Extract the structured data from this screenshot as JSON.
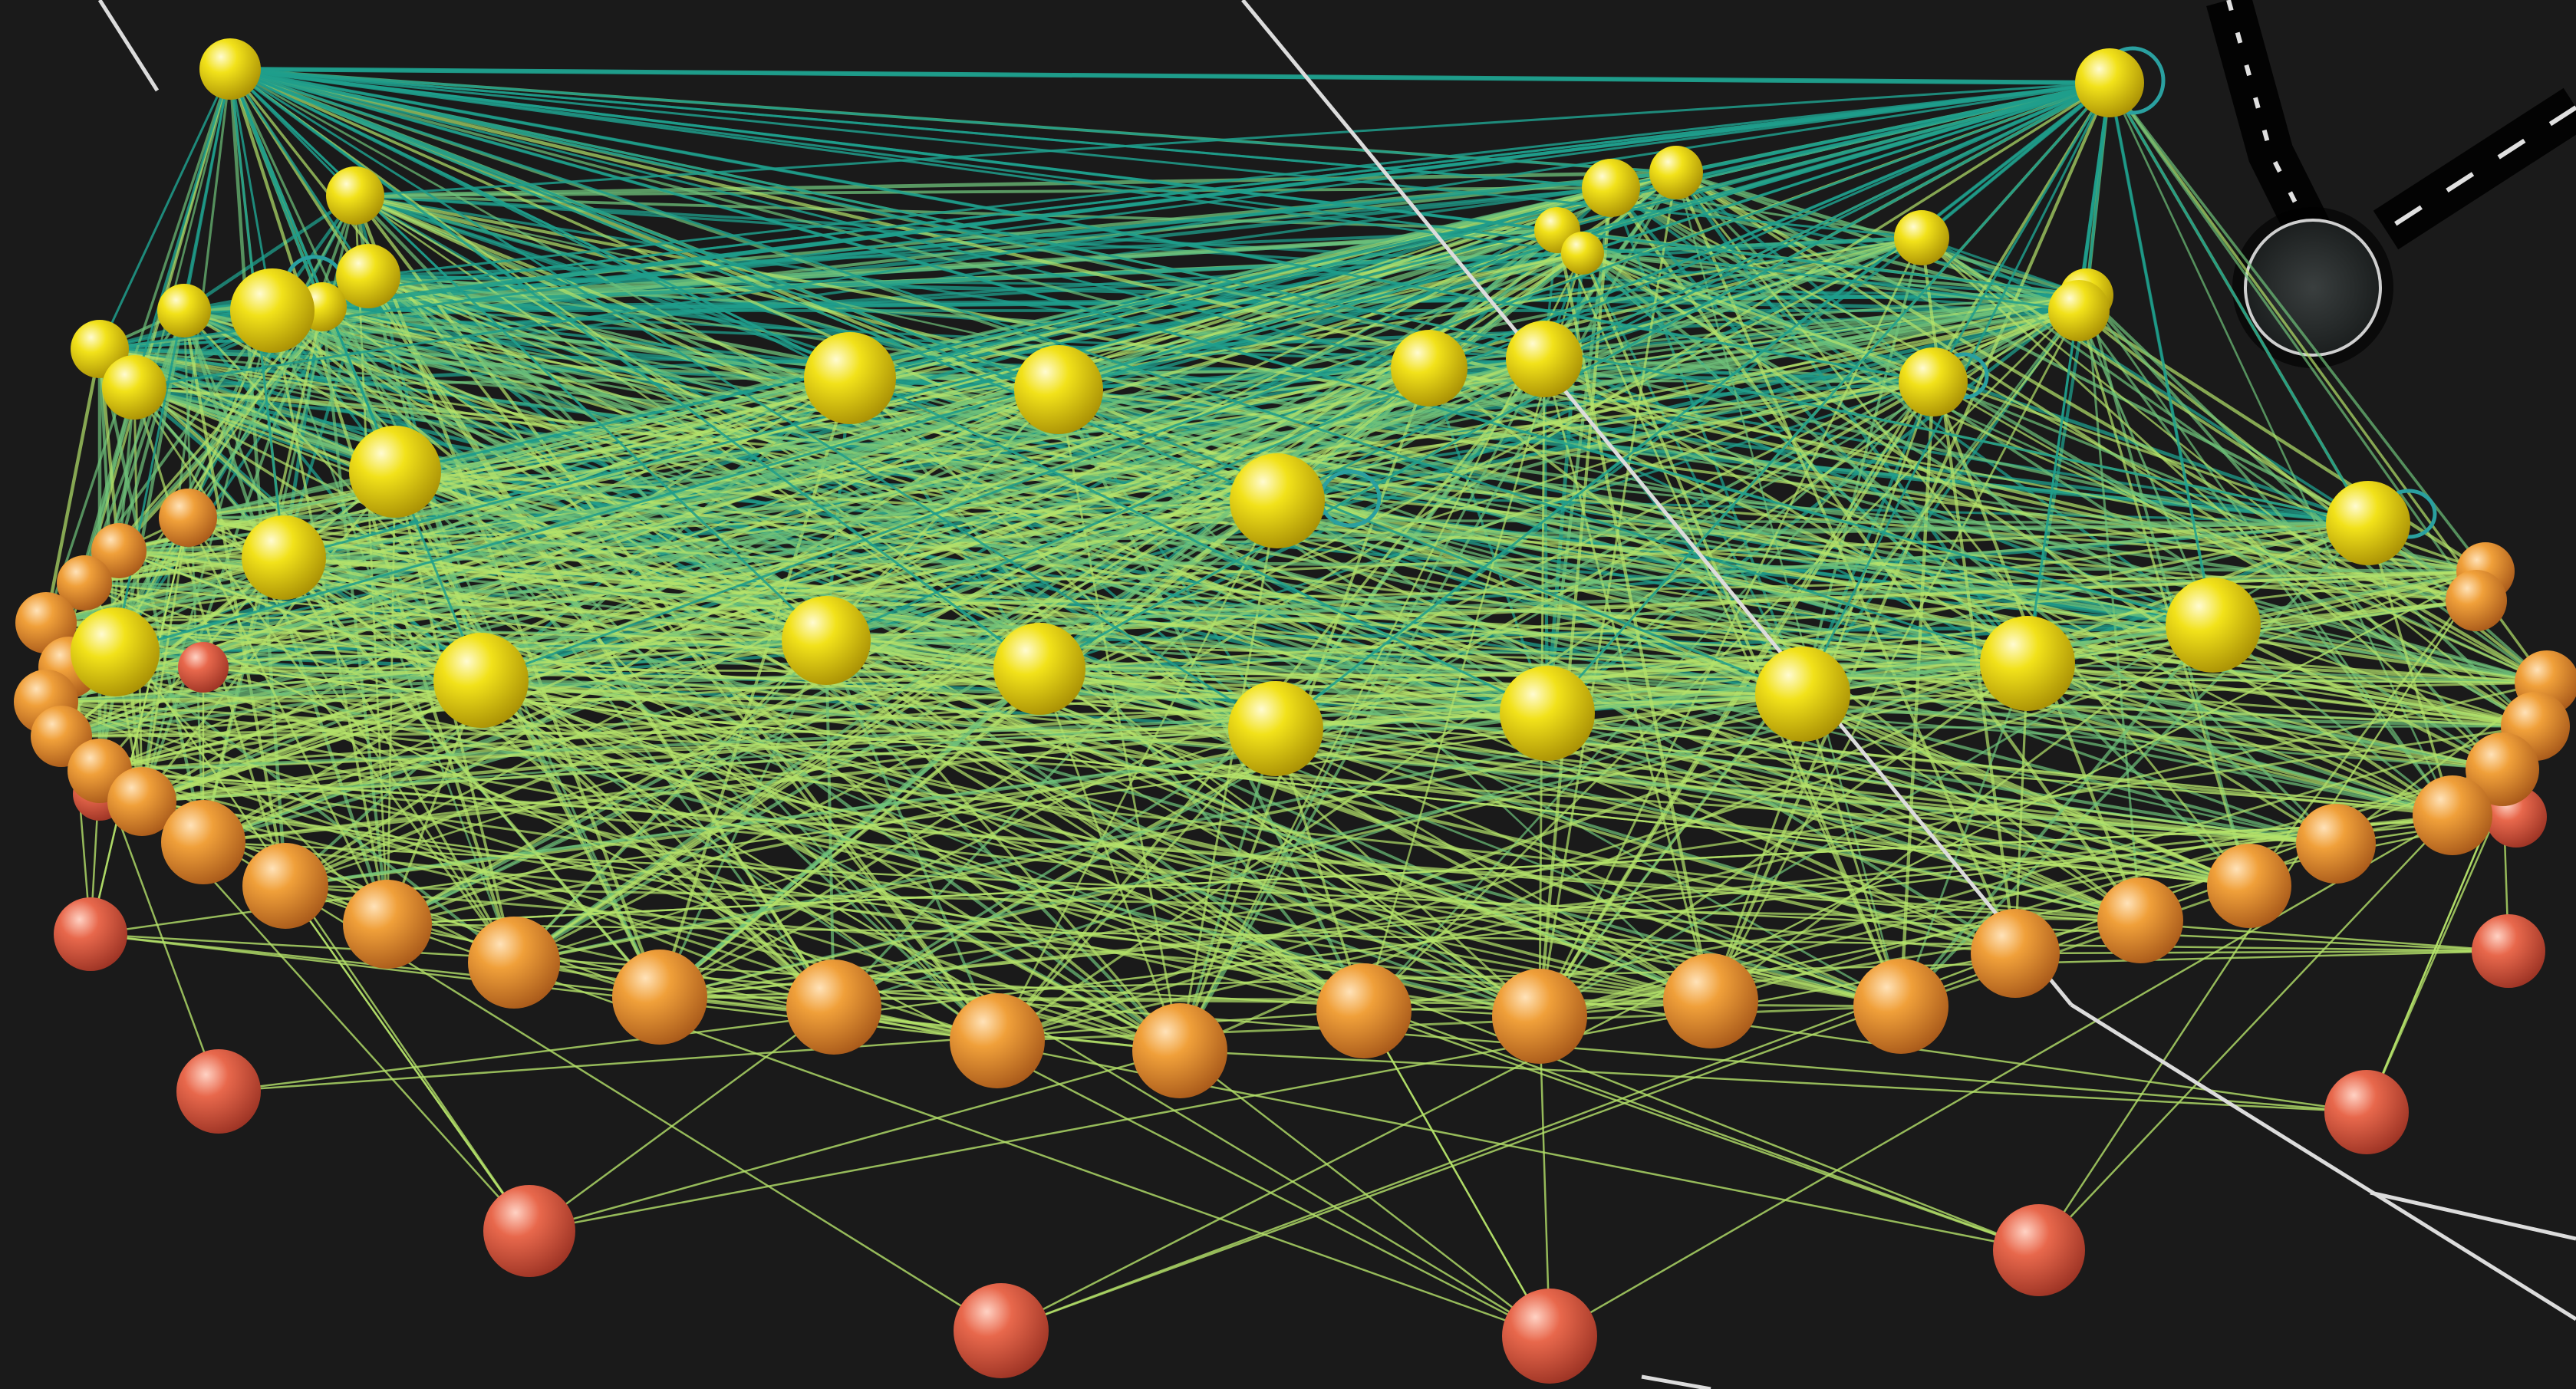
{
  "scene": {
    "background": "#1a1a1a",
    "node_colors": {
      "top_tier": "#f2e21a",
      "middle_tier": "#f0a03a",
      "bottom_tier": "#e8684c"
    },
    "edge_colors": {
      "teal": "#1f9e8c",
      "light_green": "#b5e36a",
      "mid_green": "#6fc27a"
    },
    "highlight_line_color": "#dcdcdc",
    "self_loop_color": "#2aa0a0",
    "disk_color": "#2a2e2e",
    "disk_rim_color": "#cfcfcf",
    "dashed_path_color": "#e0e0e0"
  }
}
